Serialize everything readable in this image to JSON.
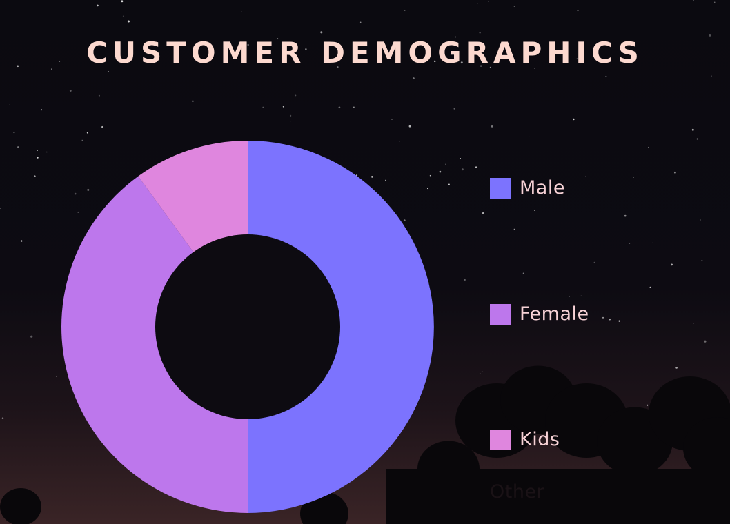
{
  "colors": {
    "title": "#fcd9cf",
    "legend_text": "#f7d2d6",
    "hole": "#0d0b11"
  },
  "chart_data": {
    "type": "pie",
    "title": "CUSTOMER DEMOGRAPHICS",
    "donut": true,
    "legend_position": "right",
    "slices": [
      {
        "label": "Male",
        "value": 50,
        "color": "#7c73fe"
      },
      {
        "label": "Female",
        "value": 40,
        "color": "#bd77ec"
      },
      {
        "label": "Kids",
        "value": 10,
        "color": "#df86de"
      },
      {
        "label": "Other",
        "value": 0,
        "color": "#1a1216"
      }
    ]
  }
}
